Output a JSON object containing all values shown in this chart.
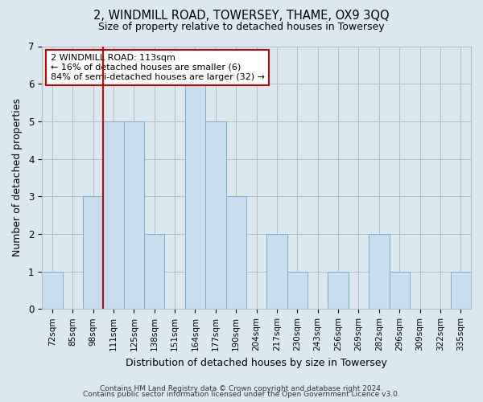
{
  "title": "2, WINDMILL ROAD, TOWERSEY, THAME, OX9 3QQ",
  "subtitle": "Size of property relative to detached houses in Towersey",
  "xlabel": "Distribution of detached houses by size in Towersey",
  "ylabel": "Number of detached properties",
  "categories": [
    "72sqm",
    "85sqm",
    "98sqm",
    "111sqm",
    "125sqm",
    "138sqm",
    "151sqm",
    "164sqm",
    "177sqm",
    "190sqm",
    "204sqm",
    "217sqm",
    "230sqm",
    "243sqm",
    "256sqm",
    "269sqm",
    "282sqm",
    "296sqm",
    "309sqm",
    "322sqm",
    "335sqm"
  ],
  "values": [
    1,
    0,
    3,
    5,
    5,
    2,
    0,
    6,
    5,
    3,
    0,
    2,
    1,
    0,
    1,
    0,
    2,
    1,
    0,
    0,
    1
  ],
  "bar_color": "#c8ddef",
  "bar_edge_color": "#7aaec8",
  "red_line_index": 3,
  "annotation_text": "2 WINDMILL ROAD: 113sqm\n← 16% of detached houses are smaller (6)\n84% of semi-detached houses are larger (32) →",
  "annotation_box_color": "#ffffff",
  "annotation_box_edge_color": "#cc0000",
  "ylim": [
    0,
    7
  ],
  "yticks": [
    0,
    1,
    2,
    3,
    4,
    5,
    6,
    7
  ],
  "footer_line1": "Contains HM Land Registry data © Crown copyright and database right 2024.",
  "footer_line2": "Contains public sector information licensed under the Open Government Licence v3.0.",
  "bg_color": "#dce8f0",
  "plot_bg_color": "#dce8f0",
  "grid_color": "#b0bec8"
}
